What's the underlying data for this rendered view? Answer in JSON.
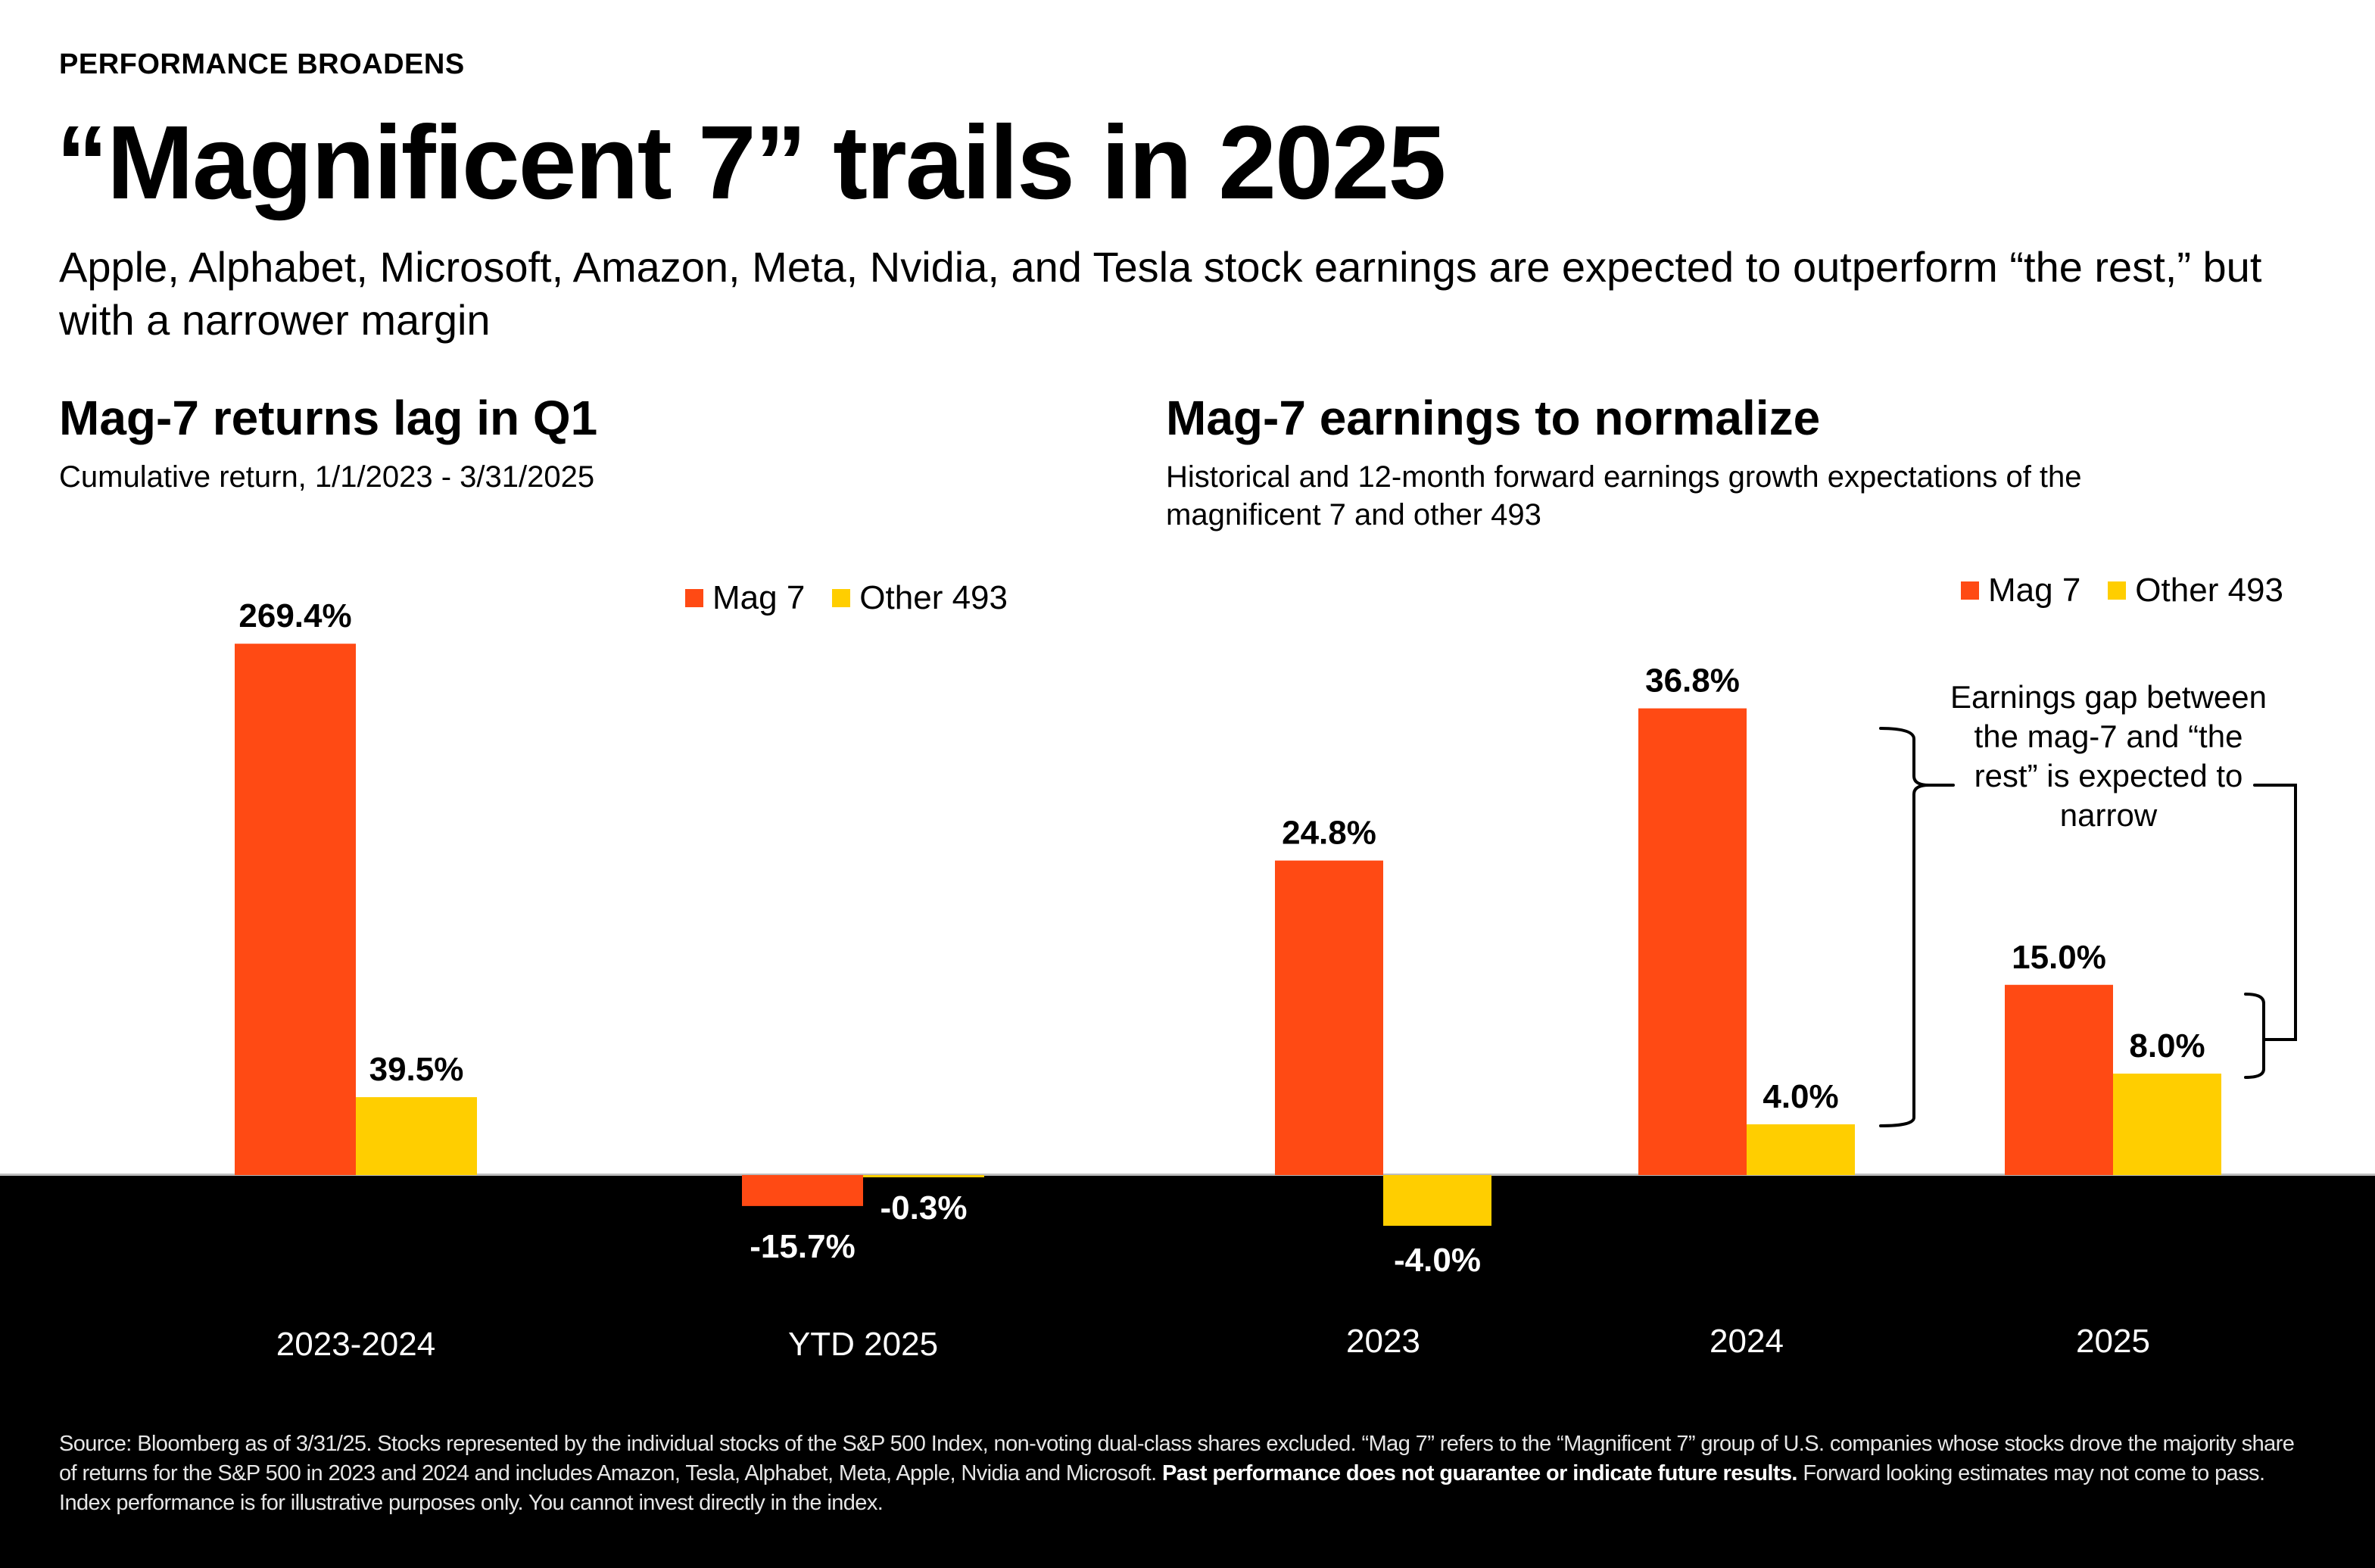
{
  "header": {
    "eyebrow": "PERFORMANCE BROADENS",
    "title": "“Magnificent 7” trails in 2025",
    "subtitle": "Apple, Alphabet, Microsoft, Amazon, Meta, Nvidia, and Tesla stock earnings are expected to outperform “the rest,” but with a narrower margin"
  },
  "colors": {
    "mag7": "#FF4A14",
    "other493": "#FFCE00",
    "band": "#000000"
  },
  "legend": {
    "mag7": "Mag 7",
    "other493": "Other 493"
  },
  "annotation": {
    "text": "Earnings gap between the mag-7 and “the rest” is expected to narrow"
  },
  "footnote": {
    "part1": "Source: Bloomberg as of 3/31/25.  Stocks represented by the individual stocks of the S&P 500 Index, non-voting dual-class shares excluded. “Mag 7” refers to the “Magnificent 7” group of U.S. companies whose stocks drove the majority  share of returns for the S&P 500 in 2023 and 2024  and includes Amazon, Tesla, Alphabet, Meta, Apple, Nvidia and Microsoft. ",
    "bold": "Past performance does not guarantee or indicate future results.",
    "part2": "  Forward looking estimates may not come to pass. Index performance is for illustrative purposes only. You cannot invest directly in the index."
  },
  "chart_data": [
    {
      "type": "bar",
      "title": "Mag-7 returns lag in Q1",
      "subtitle": "Cumulative return, 1/1/2023 - 3/31/2025",
      "xlabel": "",
      "ylabel": "",
      "categories": [
        "2023-2024",
        "YTD 2025"
      ],
      "series": [
        {
          "name": "Mag 7",
          "values": [
            269.4,
            -15.7
          ],
          "labels": [
            "269.4%",
            "-15.7%"
          ]
        },
        {
          "name": "Other 493",
          "values": [
            39.5,
            -0.3
          ],
          "labels": [
            "39.5%",
            "-0.3%"
          ]
        }
      ],
      "grid": false,
      "legend_position": "top-right"
    },
    {
      "type": "bar",
      "title": "Mag-7 earnings to normalize",
      "subtitle": "Historical and 12-month forward earnings growth expectations of the magnificent 7 and other 493",
      "xlabel": "",
      "ylabel": "",
      "categories": [
        "2023",
        "2024",
        "2025"
      ],
      "series": [
        {
          "name": "Mag 7",
          "values": [
            24.8,
            36.8,
            15.0
          ],
          "labels": [
            "24.8%",
            "36.8%",
            "15.0%"
          ]
        },
        {
          "name": "Other 493",
          "values": [
            -4.0,
            4.0,
            8.0
          ],
          "labels": [
            "-4.0%",
            "4.0%",
            "8.0%"
          ]
        }
      ],
      "grid": false,
      "legend_position": "top-right"
    }
  ]
}
